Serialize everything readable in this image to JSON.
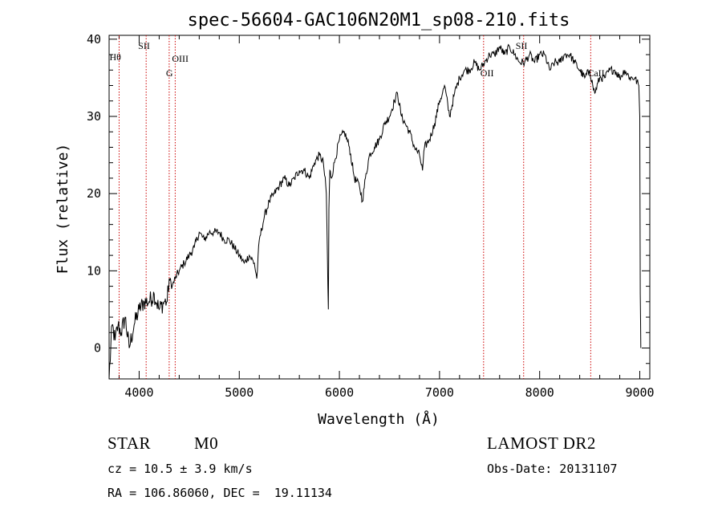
{
  "chart_data": {
    "type": "line",
    "title": "spec-56604-GAC106N20M1_sp08-210.fits",
    "xlabel": "Wavelength (Å)",
    "ylabel": "Flux (relative)",
    "xlim": [
      3700,
      9100
    ],
    "ylim": [
      -4,
      40.5
    ],
    "x_ticks": [
      4000,
      5000,
      6000,
      7000,
      8000,
      9000
    ],
    "y_ticks": [
      0,
      10,
      20,
      30,
      40
    ],
    "x_tick_labels": [
      "4000",
      "5000",
      "6000",
      "7000",
      "8000",
      "9000"
    ],
    "y_tick_labels": [
      "0",
      "10",
      "20",
      "30",
      "40"
    ],
    "grid": false,
    "series": [
      {
        "x": [
          3700,
          3730,
          3760,
          3790,
          3820,
          3860,
          3900,
          3950,
          4000,
          4050,
          4100,
          4150,
          4200,
          4250,
          4280,
          4300,
          4330,
          4360,
          4400,
          4450,
          4500,
          4550,
          4600,
          4650,
          4700,
          4750,
          4800,
          4850,
          4900,
          4950,
          5000,
          5050,
          5100,
          5150,
          5175,
          5200,
          5250,
          5300,
          5350,
          5400,
          5450,
          5500,
          5550,
          5600,
          5650,
          5700,
          5750,
          5800,
          5840,
          5870,
          5885,
          5890,
          5895,
          5905,
          5920,
          5950,
          6000,
          6050,
          6100,
          6150,
          6200,
          6230,
          6260,
          6300,
          6350,
          6400,
          6450,
          6500,
          6550,
          6580,
          6620,
          6660,
          6700,
          6750,
          6800,
          6830,
          6850,
          6900,
          6950,
          7000,
          7030,
          7050,
          7100,
          7150,
          7200,
          7250,
          7300,
          7350,
          7400,
          7450,
          7500,
          7550,
          7600,
          7650,
          7700,
          7750,
          7800,
          7850,
          7900,
          7950,
          8000,
          8050,
          8100,
          8150,
          8200,
          8250,
          8300,
          8350,
          8400,
          8450,
          8500,
          8530,
          8550,
          8600,
          8650,
          8700,
          8750,
          8800,
          8850,
          8900,
          8950,
          8990,
          9000,
          9005,
          9010
        ],
        "y": [
          -4,
          3,
          1,
          3,
          2,
          4,
          0,
          3,
          5,
          6,
          6,
          7,
          5,
          6,
          6,
          9,
          8,
          9,
          10,
          11,
          12,
          13,
          15,
          14,
          15,
          15,
          15,
          14,
          14,
          13,
          12,
          11,
          12,
          11,
          9,
          14,
          17,
          19,
          20,
          21,
          22,
          21,
          22,
          23,
          23,
          22,
          24,
          25,
          24,
          20,
          8,
          5,
          18,
          23,
          22,
          24,
          27,
          28,
          26,
          22,
          21,
          19,
          22,
          25,
          26,
          27,
          29,
          30,
          32,
          33,
          30,
          29,
          28,
          26,
          25,
          23,
          26,
          27,
          29,
          32,
          33,
          34,
          30,
          33,
          35,
          36,
          36,
          37,
          36,
          37,
          38,
          38,
          39,
          38,
          39,
          38,
          37,
          37,
          38,
          37,
          38,
          38,
          36,
          37,
          37,
          38,
          38,
          37,
          36,
          35,
          36,
          34,
          33,
          35,
          35,
          36,
          36,
          35,
          36,
          35,
          35,
          34,
          30,
          7,
          0
        ]
      }
    ],
    "lines": [
      {
        "x": 3800,
        "label": "Hθ",
        "color": "#cc0000"
      },
      {
        "x": 4070,
        "label": "SII",
        "color": "#cc0000"
      },
      {
        "x": 4300,
        "label": "G",
        "color": "#cc0000"
      },
      {
        "x": 4360,
        "label": "OIII",
        "color": "#cc0000"
      },
      {
        "x": 7440,
        "label": "OII",
        "color": "#cc0000"
      },
      {
        "x": 7840,
        "label": "SII",
        "color": "#cc0000"
      },
      {
        "x": 8510,
        "label": "CaII",
        "color": "#cc0000"
      }
    ]
  },
  "info": {
    "class": "STAR",
    "subclass": "M0",
    "survey": "LAMOST DR2",
    "cz": "cz = 10.5 ± 3.9 km/s",
    "obs_date": "Obs-Date: 20131107",
    "radec": "RA = 106.86060, DEC =  19.11134"
  }
}
